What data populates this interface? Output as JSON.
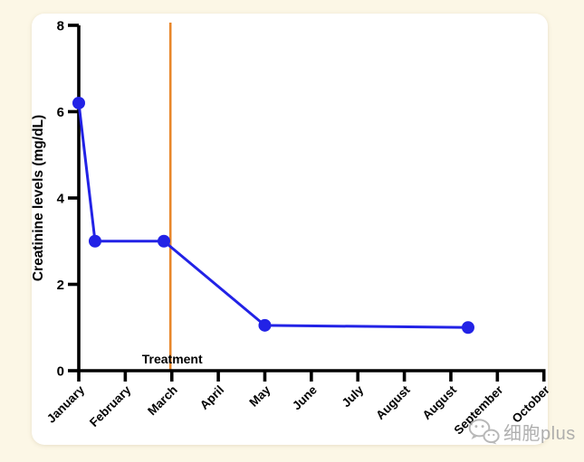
{
  "page": {
    "background_color": "#FCF7E6",
    "card_color": "#FFFFFF"
  },
  "chart_data": {
    "type": "line",
    "title": "",
    "xlabel": "",
    "ylabel": "Creatinine levels (mg/dL)",
    "categories": [
      "January",
      "February",
      "March",
      "April",
      "May",
      "June",
      "July",
      "August",
      "August",
      "September",
      "October"
    ],
    "y_ticks": [
      0,
      2,
      4,
      6,
      8
    ],
    "ylim": [
      0,
      8
    ],
    "grid": false,
    "legend": false,
    "axis_color": "#000000",
    "series": [
      {
        "name": "Creatinine levels",
        "color": "#2222E6",
        "marker": "circle",
        "points": [
          {
            "x": 0.0,
            "y": 6.2
          },
          {
            "x": 0.35,
            "y": 3.0
          },
          {
            "x": 1.83,
            "y": 3.0
          },
          {
            "x": 4.0,
            "y": 1.05
          },
          {
            "x": 8.37,
            "y": 1.0
          }
        ]
      }
    ],
    "annotation_line": {
      "x": 1.97,
      "label": "Treatment",
      "color": "#E8872B"
    }
  },
  "watermark": {
    "icon": "wechat-icon",
    "text": "细胞plus",
    "color": "#A2A2A2"
  }
}
